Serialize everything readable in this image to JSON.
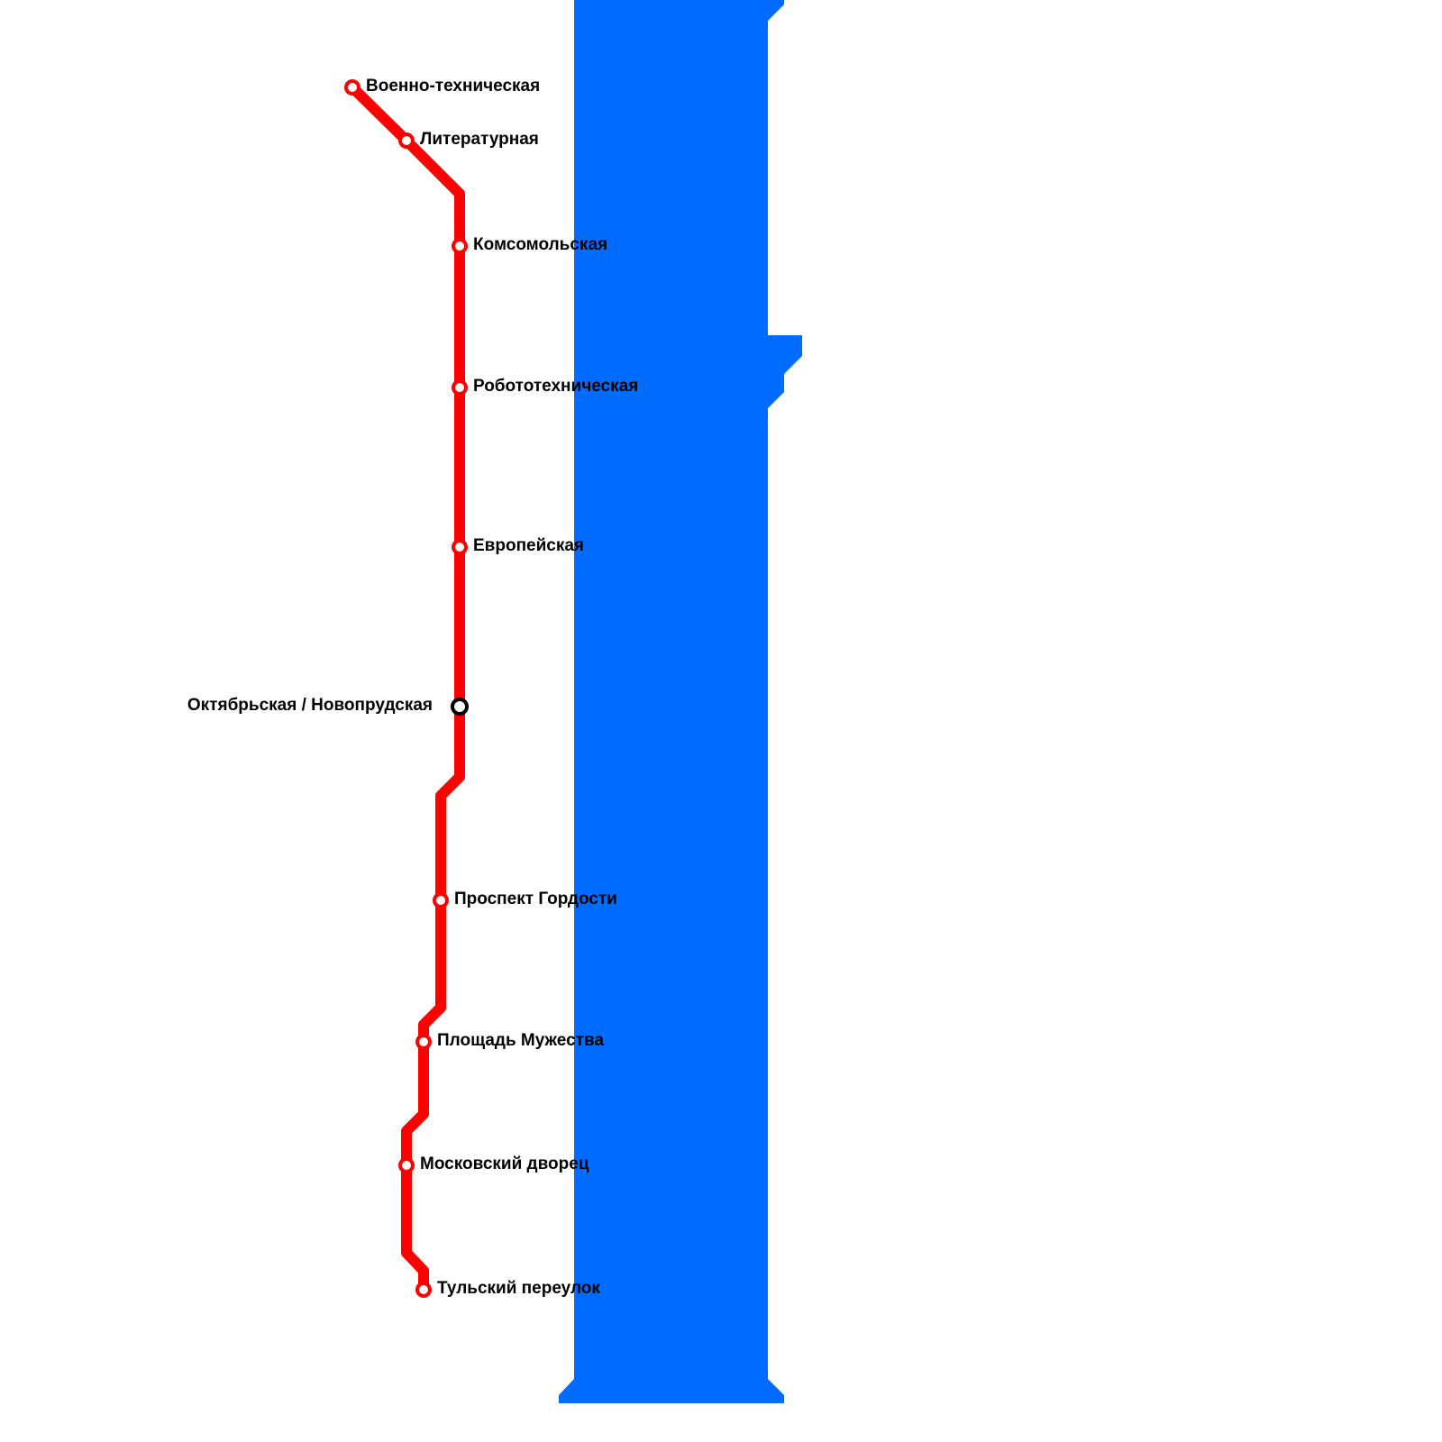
{
  "stations": [
    {
      "name": "Военно-техническая"
    },
    {
      "name": "Литературная"
    },
    {
      "name": "Комсомольская"
    },
    {
      "name": "Робототехническая"
    },
    {
      "name": "Европейская"
    },
    {
      "name": "Октябрьская / Новопрудская",
      "transfer": true
    },
    {
      "name": "Проспект Гордости"
    },
    {
      "name": "Площадь Мужества"
    },
    {
      "name": "Московский дворец"
    },
    {
      "name": "Тульский переулок"
    }
  ]
}
